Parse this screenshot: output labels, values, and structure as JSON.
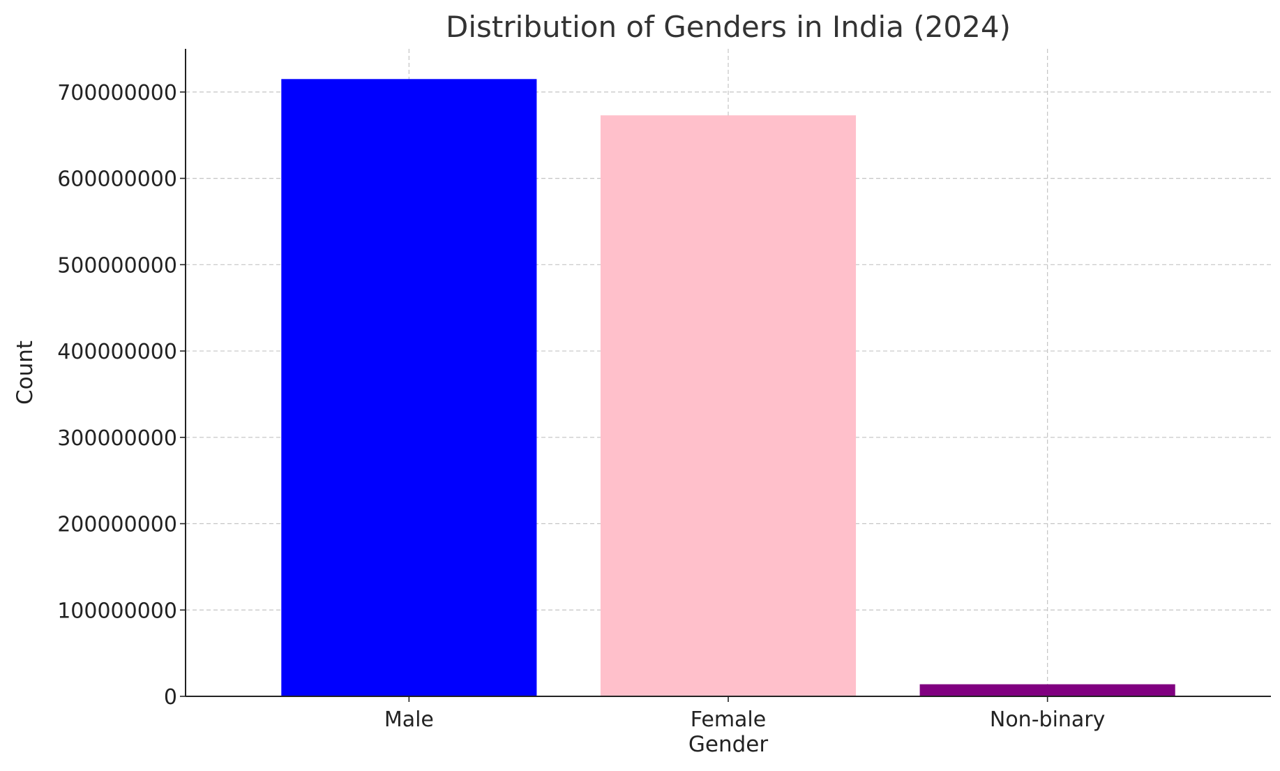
{
  "chart_data": {
    "type": "bar",
    "title": "Distribution of Genders in India (2024)",
    "xlabel": "Gender",
    "ylabel": "Count",
    "categories": [
      "Male",
      "Female",
      "Non-binary"
    ],
    "values": [
      715000000,
      673000000,
      14000000
    ],
    "colors": [
      "#0000ff",
      "#ffc0cb",
      "#800080"
    ],
    "ylim": [
      0,
      750000000
    ],
    "yticks": [
      0,
      100000000,
      200000000,
      300000000,
      400000000,
      500000000,
      600000000,
      700000000
    ],
    "ytick_labels": [
      "0",
      "100000000",
      "200000000",
      "300000000",
      "400000000",
      "500000000",
      "600000000",
      "700000000"
    ],
    "grid": true
  }
}
